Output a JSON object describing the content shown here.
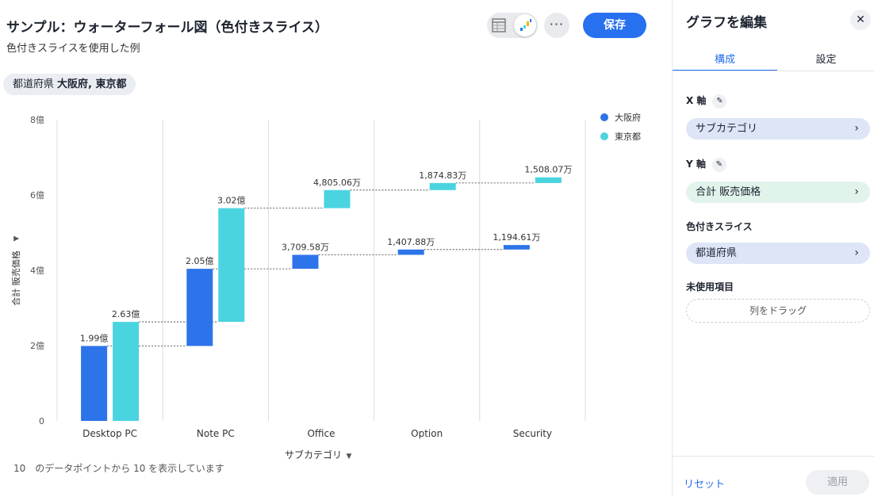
{
  "header": {
    "title": "サンプル：ウォーターフォール図（色付きスライス）",
    "subtitle": "色付きスライスを使用した例",
    "save_label": "保存",
    "more_label": "···"
  },
  "filter": {
    "label": "都道府県",
    "value": "大阪府, 東京都"
  },
  "footer": {
    "note": "10　のデータポイントから 10 を表示しています"
  },
  "chart_data": {
    "type": "waterfall",
    "xlabel": "サブカテゴリ",
    "ylabel": "合計 販売価格",
    "ylim": [
      0,
      800000000
    ],
    "yticks": [
      {
        "value": 0,
        "label": "0"
      },
      {
        "value": 200000000,
        "label": "2億"
      },
      {
        "value": 400000000,
        "label": "4億"
      },
      {
        "value": 600000000,
        "label": "6億"
      },
      {
        "value": 800000000,
        "label": "8億"
      }
    ],
    "categories": [
      "Desktop PC",
      "Note PC",
      "Office",
      "Option",
      "Security"
    ],
    "legend_position": "top-right",
    "series": [
      {
        "name": "大阪府",
        "color": "#2d74ea",
        "values": [
          199000000,
          205000000,
          37095800,
          14078800,
          11946100
        ],
        "labels": [
          "1.99億",
          "2.05億",
          "3,709.58万",
          "1,407.88万",
          "1,194.61万"
        ]
      },
      {
        "name": "東京都",
        "color": "#4ad4e0",
        "values": [
          263000000,
          302000000,
          48050600,
          18748300,
          15080700
        ],
        "labels": [
          "2.63億",
          "3.02億",
          "4,805.06万",
          "1,874.83万",
          "1,508.07万"
        ]
      }
    ],
    "grid": "vertical"
  },
  "panel": {
    "title": "グラフを編集",
    "close_icon": "close-icon",
    "tabs": [
      "構成",
      "設定"
    ],
    "x_axis_label": "X 軸",
    "x_axis_value": "サブカテゴリ",
    "y_axis_label": "Y 軸",
    "y_axis_value": "合計 販売価格",
    "color_label": "色付きスライス",
    "color_value": "都道府県",
    "unused_label": "未使用項目",
    "drop_hint": "列をドラッグ",
    "reset_label": "リセット",
    "apply_label": "適用"
  }
}
